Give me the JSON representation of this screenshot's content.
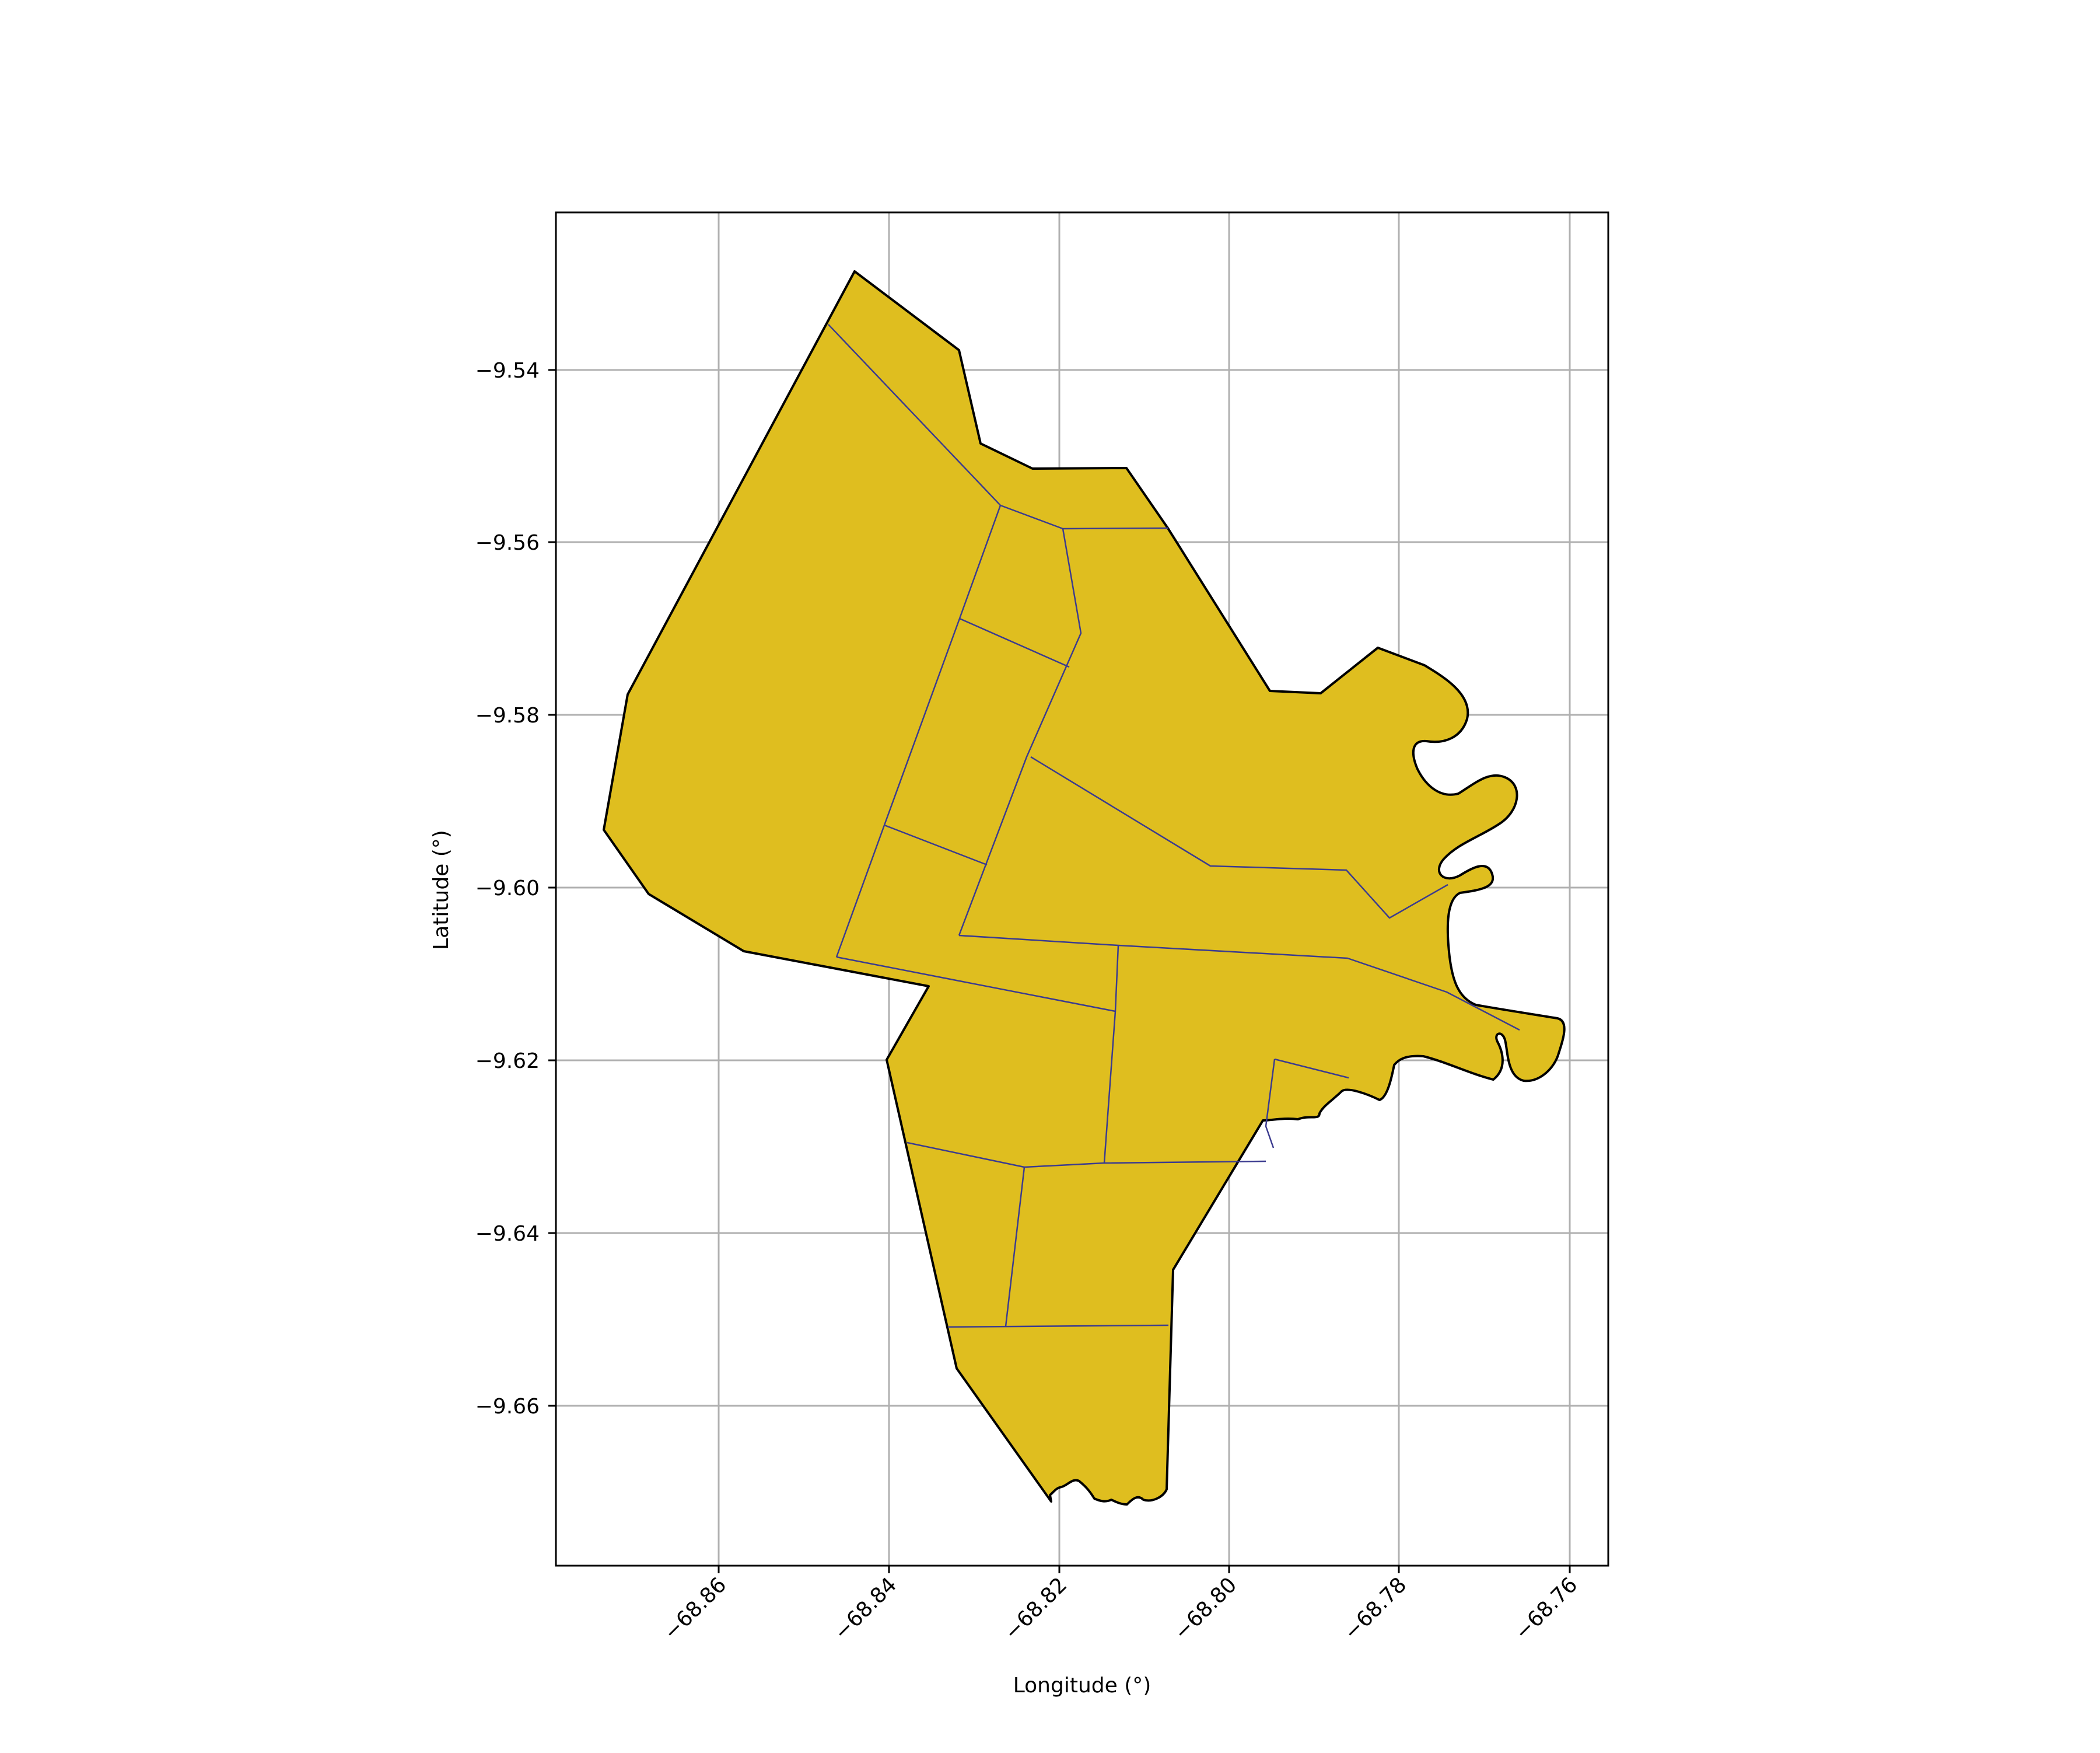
{
  "map": {
    "x_label": "Longitude (°)",
    "y_label": "Latitude (°)",
    "x_ticks": [
      "−68.86",
      "−68.84",
      "−68.82",
      "−68.80",
      "−68.78",
      "−68.76"
    ],
    "y_ticks": [
      "−9.54",
      "−9.56",
      "−9.58",
      "−9.60",
      "−9.62",
      "−9.64",
      "−9.66"
    ],
    "x_tick_values": [
      -68.86,
      -68.84,
      -68.82,
      -68.8,
      -68.78,
      -68.76
    ],
    "y_tick_values": [
      -9.54,
      -9.56,
      -9.58,
      -9.6,
      -9.62,
      -9.64,
      -9.66
    ],
    "x_range": [
      -68.879,
      -68.7556
    ],
    "y_range": [
      -9.6783,
      -9.5215
    ],
    "grid": true,
    "colors": {
      "fill": "#dfbe1f",
      "district_border": "#3b3b8f",
      "outline": "#000000",
      "grid": "#b0b0b0"
    }
  }
}
